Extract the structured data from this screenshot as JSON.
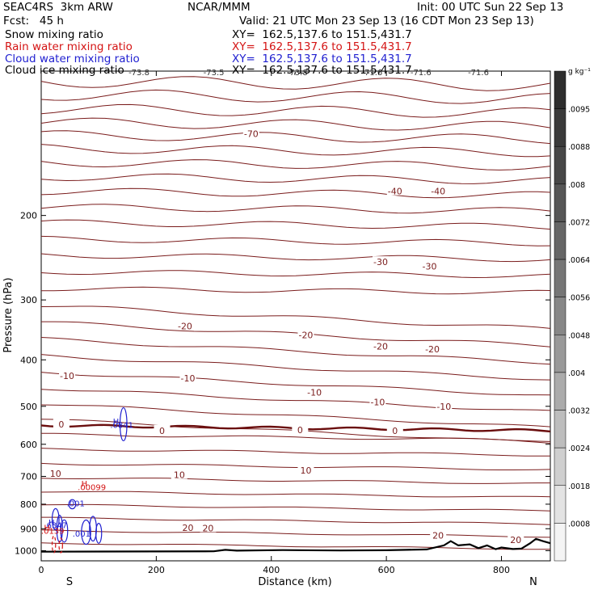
{
  "header": {
    "model": "SEAC4RS  3km ARW",
    "center": "NCAR/MMM",
    "init": "Init: 00 UTC Sun 22 Sep 13",
    "fcst": "Fcst:   45 h",
    "valid": "Valid: 21 UTC Mon 23 Sep 13 (16 CDT Mon 23 Sep 13)"
  },
  "fields": [
    {
      "name": "Snow mixing ratio",
      "xy": "XY=  162.5,137.6 to 151.5,431.7",
      "color": "#000000"
    },
    {
      "name": "Rain water mixing ratio",
      "xy": "XY=  162.5,137.6 to 151.5,431.7",
      "color": "#d41414"
    },
    {
      "name": "Cloud water mixing ratio",
      "xy": "XY=  162.5,137.6 to 151.5,431.7",
      "color": "#1f1fd0"
    },
    {
      "name": "Cloud ice mixing ratio",
      "xy": "XY=  162.5,137.6 to 151.5,431.7",
      "color": "#000000"
    }
  ],
  "chart_data": {
    "type": "contour",
    "xlabel": "Distance (km)",
    "ylabel": "Pressure (hPa)",
    "xlim": [
      0,
      885
    ],
    "ylim": [
      1050,
      100
    ],
    "y_scale": "log",
    "x_ticks": [
      0,
      200,
      400,
      600,
      800
    ],
    "y_ticks": [
      200,
      300,
      400,
      500,
      600,
      700,
      800,
      900,
      1000
    ],
    "x_end_labels": {
      "left": "S",
      "right": "N"
    },
    "colorbar": {
      "unit": "g kg⁻¹",
      "labels": [
        ".0095",
        ".0088",
        ".008",
        ".0072",
        ".0064",
        ".0056",
        ".0048",
        ".004",
        ".0032",
        ".0024",
        ".0018",
        ".0008"
      ],
      "colors": [
        "#2e2e2e",
        "#3a3a3a",
        "#474747",
        "#565656",
        "#666666",
        "#767676",
        "#878787",
        "#999999",
        "#ababab",
        "#bdbdbd",
        "#cfcfcf",
        "#e3e3e3",
        "#f4f4f4"
      ]
    },
    "temperature_contours": {
      "color": "#7a1c1c",
      "freezing_level_color": "#6a0d0d",
      "labels": [
        {
          "text": "-70",
          "x": 365,
          "p": 135
        },
        {
          "text": "-40",
          "x": 615,
          "p": 178
        },
        {
          "text": "-40",
          "x": 690,
          "p": 178
        },
        {
          "text": "-30",
          "x": 590,
          "p": 250
        },
        {
          "text": "-30",
          "x": 675,
          "p": 255
        },
        {
          "text": "-20",
          "x": 250,
          "p": 340
        },
        {
          "text": "-20",
          "x": 460,
          "p": 355
        },
        {
          "text": "-20",
          "x": 590,
          "p": 375
        },
        {
          "text": "-20",
          "x": 680,
          "p": 380
        },
        {
          "text": "-10",
          "x": 45,
          "p": 432
        },
        {
          "text": "-10",
          "x": 255,
          "p": 437
        },
        {
          "text": "-10",
          "x": 475,
          "p": 468
        },
        {
          "text": "-10",
          "x": 585,
          "p": 490
        },
        {
          "text": "-10",
          "x": 700,
          "p": 500
        },
        {
          "text": "0",
          "x": 35,
          "p": 545
        },
        {
          "text": "0",
          "x": 210,
          "p": 562
        },
        {
          "text": "0",
          "x": 450,
          "p": 560
        },
        {
          "text": "0",
          "x": 615,
          "p": 562
        },
        {
          "text": "10",
          "x": 25,
          "p": 690
        },
        {
          "text": "10",
          "x": 240,
          "p": 695
        },
        {
          "text": "10",
          "x": 460,
          "p": 680
        },
        {
          "text": "20",
          "x": 255,
          "p": 895
        },
        {
          "text": "20",
          "x": 290,
          "p": 897
        },
        {
          "text": "20",
          "x": 690,
          "p": 930
        },
        {
          "text": "20",
          "x": 825,
          "p": 950
        }
      ],
      "top_strip_labels": [
        "-73.8",
        "-73.5",
        "-73.8",
        "-71.6",
        "-71.6",
        "-71.6"
      ]
    },
    "annotations": [
      {
        "text": "H",
        "x": 130,
        "p": 545,
        "color": "#1f1fd0"
      },
      {
        "text": ".0841",
        "x": 140,
        "p": 555,
        "color": "#1f1fd0"
      },
      {
        "text": "H",
        "x": 75,
        "p": 735,
        "color": "#d41414"
      },
      {
        "text": ".00099",
        "x": 88,
        "p": 748,
        "color": "#d41414"
      },
      {
        "text": ".001",
        "x": 60,
        "p": 808,
        "color": "#1f1fd0"
      },
      {
        "text": "H",
        "x": 18,
        "p": 885,
        "color": "#1f1fd0"
      },
      {
        "text": ".6347",
        "x": 25,
        "p": 898,
        "color": "#1f1fd0"
      },
      {
        "text": "H",
        "x": 10,
        "p": 908,
        "color": "#d41414"
      },
      {
        "text": ".0139",
        "x": 20,
        "p": 922,
        "color": "#d41414"
      },
      {
        "text": ".001",
        "x": 70,
        "p": 935,
        "color": "#1f1fd0"
      }
    ]
  }
}
